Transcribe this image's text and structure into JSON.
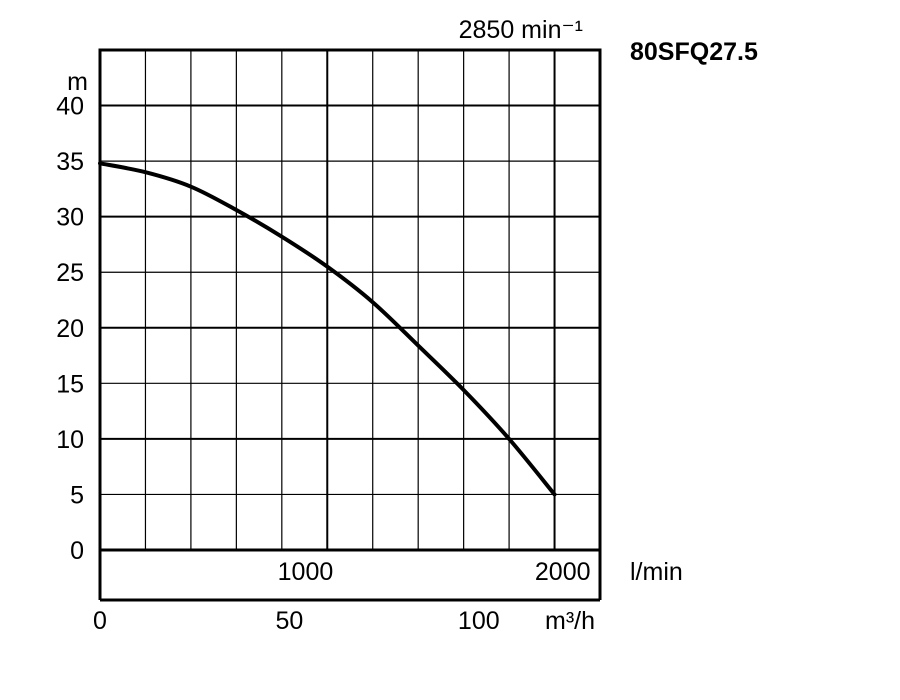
{
  "chart_data": {
    "type": "line",
    "title": "80SFQ27.5",
    "speed_label": "2850 min⁻¹",
    "ylabel": "m",
    "xlabel": "l/min",
    "xlabel_secondary": "m³/h",
    "xlim": [
      0,
      2200
    ],
    "ylim": [
      0,
      45
    ],
    "y_ticks": [
      0,
      5,
      10,
      15,
      20,
      25,
      30,
      35,
      40
    ],
    "x_ticks": [
      1000,
      2000
    ],
    "x_secondary_ticks": [
      0,
      50,
      100
    ],
    "grid": true,
    "series": [
      {
        "x": [
          0,
          200,
          400,
          600,
          800,
          1000,
          1200,
          1400,
          1600,
          1800,
          2000
        ],
        "y": [
          34.8,
          34.0,
          32.7,
          30.6,
          28.2,
          25.5,
          22.3,
          18.4,
          14.4,
          10.0,
          5.0
        ]
      }
    ]
  }
}
